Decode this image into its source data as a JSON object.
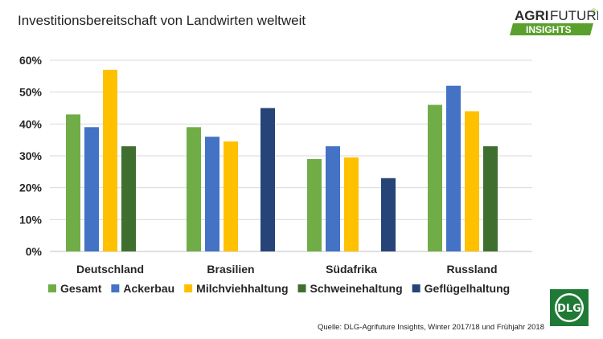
{
  "title": "Investitionsbereitschaft von Landwirten weltweit",
  "logo": {
    "line1_bold": "AGRI",
    "line1_light": "FUTURE",
    "line2": "INSIGHTS",
    "mark": "®"
  },
  "source": "Quelle: DLG-Agrifuture Insights, Winter 2017/18 und Frühjahr 2018",
  "badge": "DLG",
  "chart_data": {
    "type": "bar",
    "categories": [
      "Deutschland",
      "Brasilien",
      "Südafrika",
      "Russland"
    ],
    "series": [
      {
        "name": "Gesamt",
        "color": "#70AD47",
        "values": [
          43,
          39,
          29,
          46
        ]
      },
      {
        "name": "Ackerbau",
        "color": "#4472C4",
        "values": [
          39,
          36,
          33,
          52
        ]
      },
      {
        "name": "Milchviehhaltung",
        "color": "#FFC000",
        "values": [
          57,
          34.5,
          29.5,
          44
        ]
      },
      {
        "name": "Schweinehaltung",
        "color": "#3F6F2F",
        "values": [
          33,
          null,
          null,
          33
        ]
      },
      {
        "name": "Geflügelhaltung",
        "color": "#264478",
        "values": [
          null,
          45,
          23,
          null
        ]
      }
    ],
    "ylim": [
      0,
      60
    ],
    "yticks": [
      "0%",
      "10%",
      "20%",
      "30%",
      "40%",
      "50%",
      "60%"
    ],
    "grid": true,
    "legend": "bottom"
  }
}
